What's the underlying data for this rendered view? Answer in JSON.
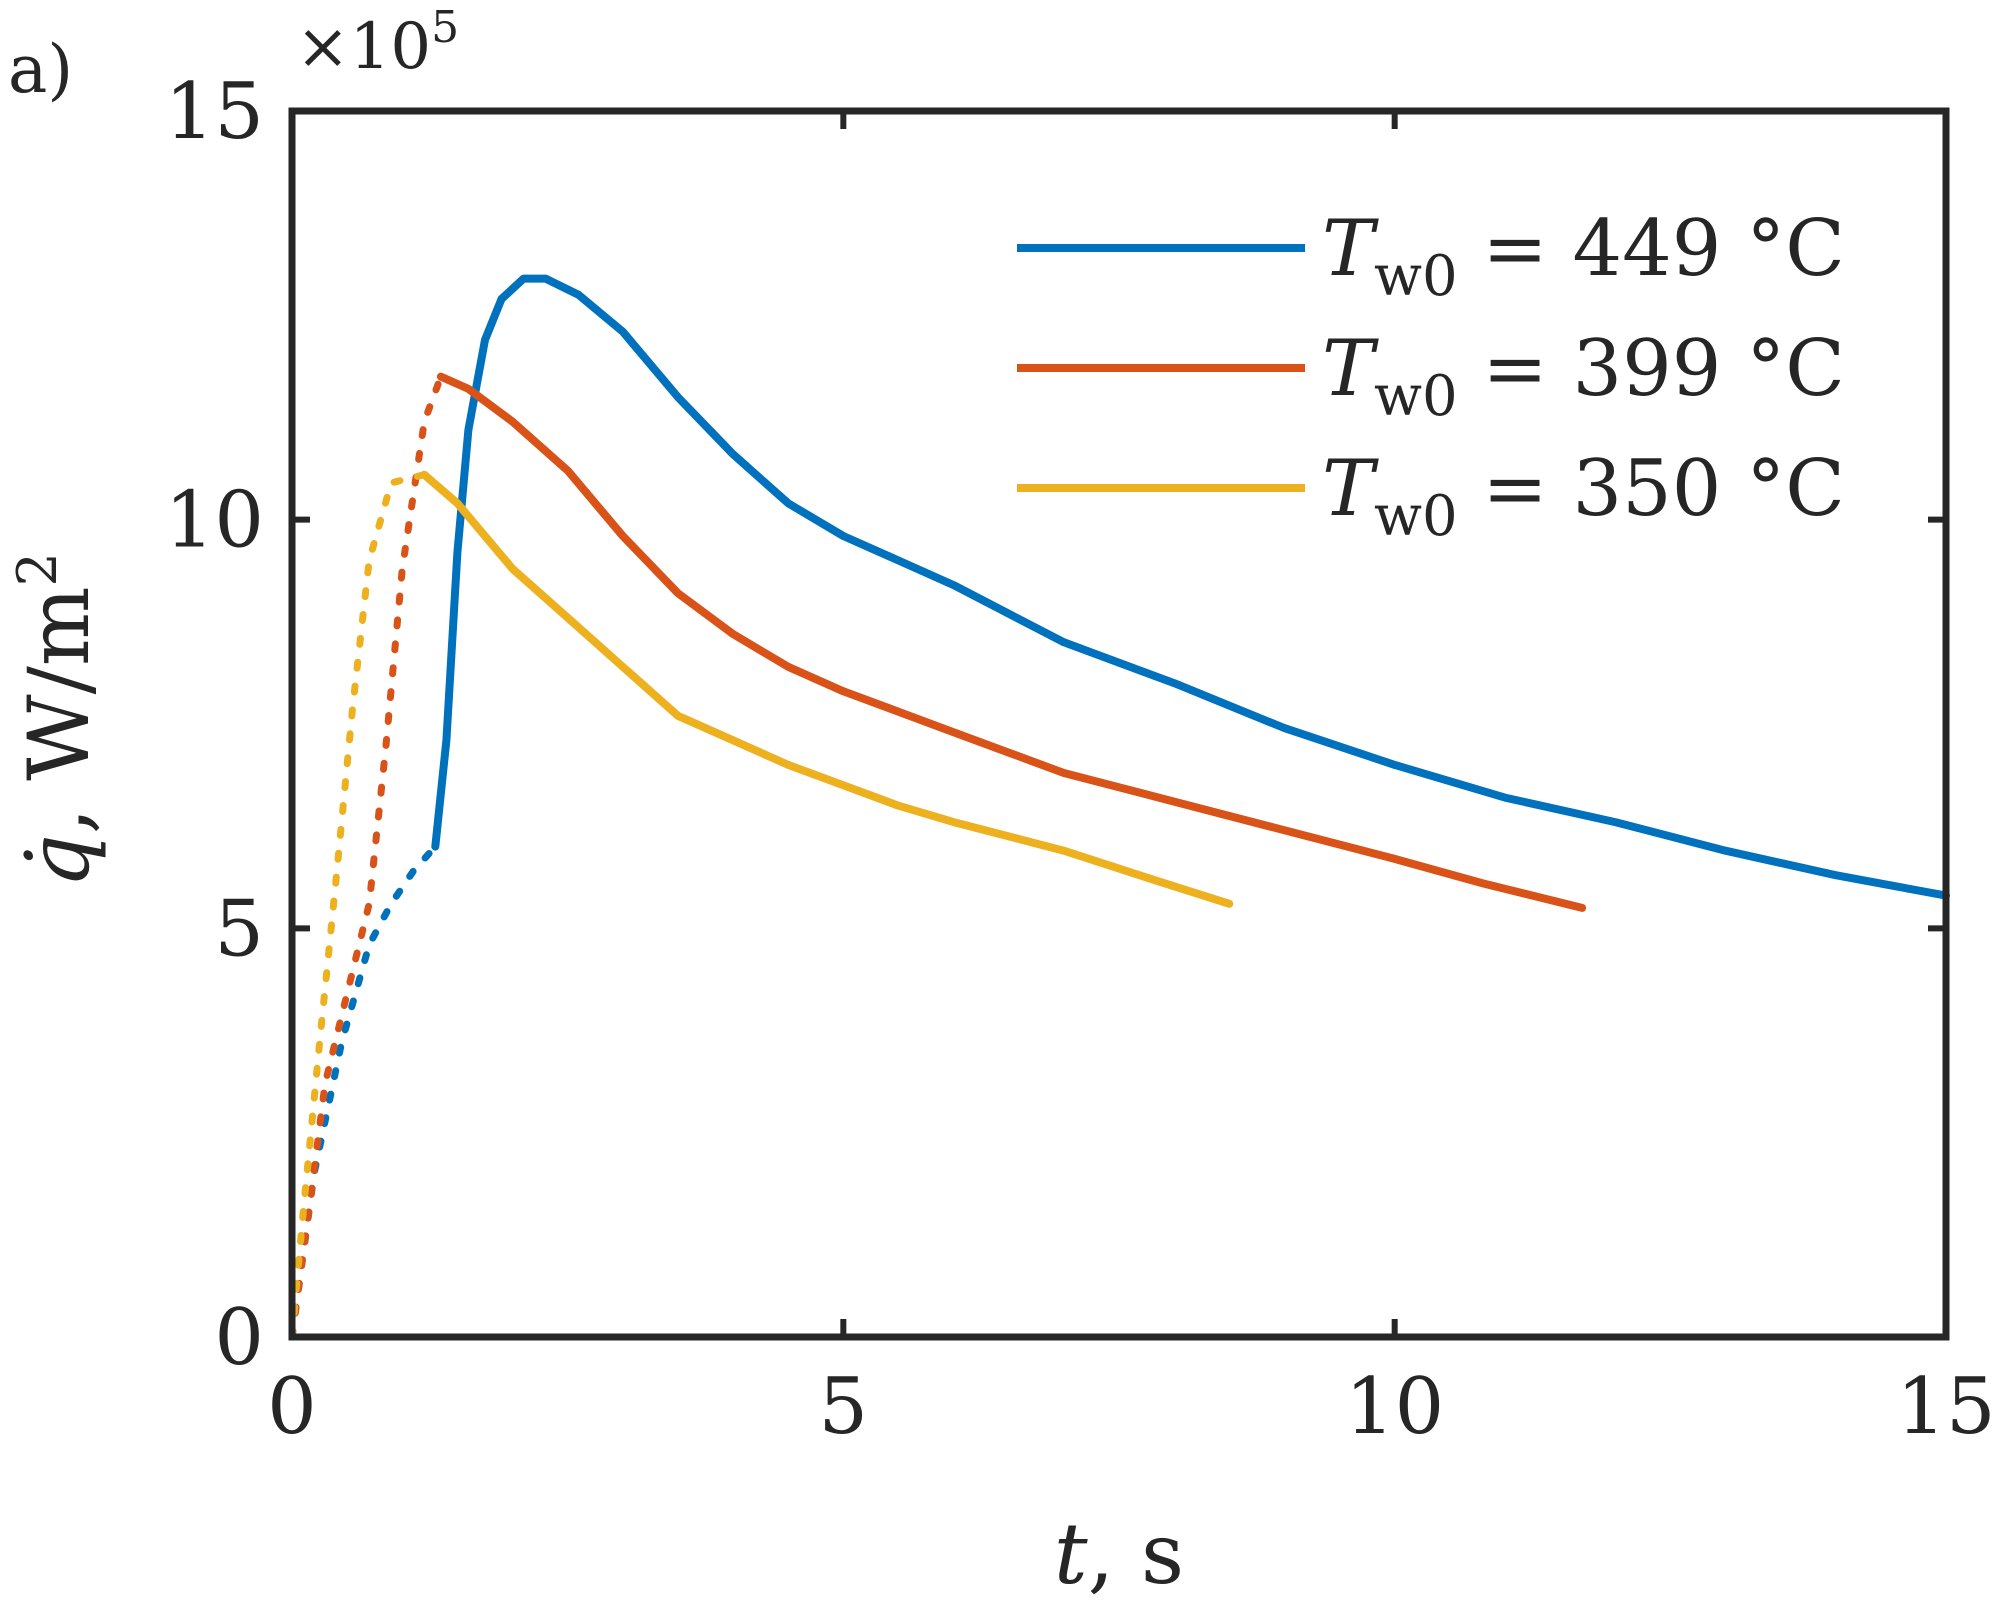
{
  "panel_label": "a)",
  "chart_data": {
    "type": "line",
    "xlabel": {
      "symbol": "t",
      "rest": ", s"
    },
    "ylabel": {
      "symbol": "q̇",
      "rest": ", W/m",
      "sup": "2"
    },
    "y_exponent": {
      "base": "×10",
      "power": "5"
    },
    "xlim": [
      0,
      15
    ],
    "ylim": [
      0,
      15
    ],
    "x_ticks": [
      0,
      5,
      10,
      15
    ],
    "y_ticks": [
      0,
      5,
      10,
      15
    ],
    "x_tick_labels": [
      "0",
      "5",
      "10",
      "15"
    ],
    "y_tick_labels": [
      "0",
      "5",
      "10",
      "15"
    ],
    "grid": false,
    "legend_position": "top-right",
    "series": [
      {
        "name": {
          "sym": "T",
          "sub": "w0",
          "value": " = 449 °C"
        },
        "color": "#0072BD",
        "dotted": [
          [
            0,
            0
          ],
          [
            0.2,
            2.0
          ],
          [
            0.45,
            3.6
          ],
          [
            0.7,
            4.8
          ],
          [
            0.9,
            5.3
          ],
          [
            1.1,
            5.7
          ],
          [
            1.3,
            6.0
          ]
        ],
        "solid": [
          [
            1.3,
            6.0
          ],
          [
            1.4,
            7.3
          ],
          [
            1.5,
            9.6
          ],
          [
            1.6,
            11.1
          ],
          [
            1.75,
            12.2
          ],
          [
            1.9,
            12.7
          ],
          [
            2.1,
            12.95
          ],
          [
            2.3,
            12.95
          ],
          [
            2.6,
            12.75
          ],
          [
            3.0,
            12.3
          ],
          [
            3.5,
            11.5
          ],
          [
            4.0,
            10.8
          ],
          [
            4.5,
            10.2
          ],
          [
            5.0,
            9.8
          ],
          [
            5.5,
            9.5
          ],
          [
            6.0,
            9.2
          ],
          [
            6.5,
            8.85
          ],
          [
            7.0,
            8.5
          ],
          [
            8.0,
            8.0
          ],
          [
            9.0,
            7.45
          ],
          [
            10.0,
            7.0
          ],
          [
            11.0,
            6.6
          ],
          [
            12.0,
            6.3
          ],
          [
            13.0,
            5.95
          ],
          [
            14.0,
            5.65
          ],
          [
            15.0,
            5.4
          ]
        ]
      },
      {
        "name": {
          "sym": "T",
          "sub": "w0",
          "value": " = 399 °C"
        },
        "color": "#D95319",
        "dotted": [
          [
            0,
            0
          ],
          [
            0.15,
            1.5
          ],
          [
            0.3,
            3.1
          ],
          [
            0.5,
            4.2
          ],
          [
            0.7,
            5.3
          ],
          [
            0.85,
            7.2
          ],
          [
            1.0,
            9.4
          ],
          [
            1.2,
            11.2
          ],
          [
            1.35,
            11.75
          ]
        ],
        "solid": [
          [
            1.35,
            11.75
          ],
          [
            1.6,
            11.6
          ],
          [
            2.0,
            11.2
          ],
          [
            2.5,
            10.6
          ],
          [
            3.0,
            9.8
          ],
          [
            3.5,
            9.1
          ],
          [
            4.0,
            8.6
          ],
          [
            4.5,
            8.2
          ],
          [
            5.0,
            7.9
          ],
          [
            5.5,
            7.65
          ],
          [
            6.0,
            7.4
          ],
          [
            6.5,
            7.15
          ],
          [
            7.0,
            6.9
          ],
          [
            8.0,
            6.55
          ],
          [
            9.0,
            6.2
          ],
          [
            10.0,
            5.85
          ],
          [
            10.8,
            5.55
          ],
          [
            11.7,
            5.25
          ]
        ]
      },
      {
        "name": {
          "sym": "T",
          "sub": "w0",
          "value": " = 350 °C"
        },
        "color": "#EDB120",
        "dotted": [
          [
            0,
            0
          ],
          [
            0.1,
            1.5
          ],
          [
            0.25,
            3.6
          ],
          [
            0.4,
            5.6
          ],
          [
            0.55,
            7.7
          ],
          [
            0.7,
            9.5
          ],
          [
            0.9,
            10.45
          ],
          [
            1.2,
            10.55
          ]
        ],
        "solid": [
          [
            1.2,
            10.55
          ],
          [
            1.5,
            10.2
          ],
          [
            2.0,
            9.4
          ],
          [
            2.5,
            8.8
          ],
          [
            3.0,
            8.2
          ],
          [
            3.5,
            7.6
          ],
          [
            4.0,
            7.3
          ],
          [
            4.5,
            7.0
          ],
          [
            5.0,
            6.75
          ],
          [
            5.5,
            6.5
          ],
          [
            6.0,
            6.3
          ],
          [
            7.0,
            5.95
          ],
          [
            7.8,
            5.6
          ],
          [
            8.5,
            5.3
          ]
        ]
      }
    ]
  }
}
